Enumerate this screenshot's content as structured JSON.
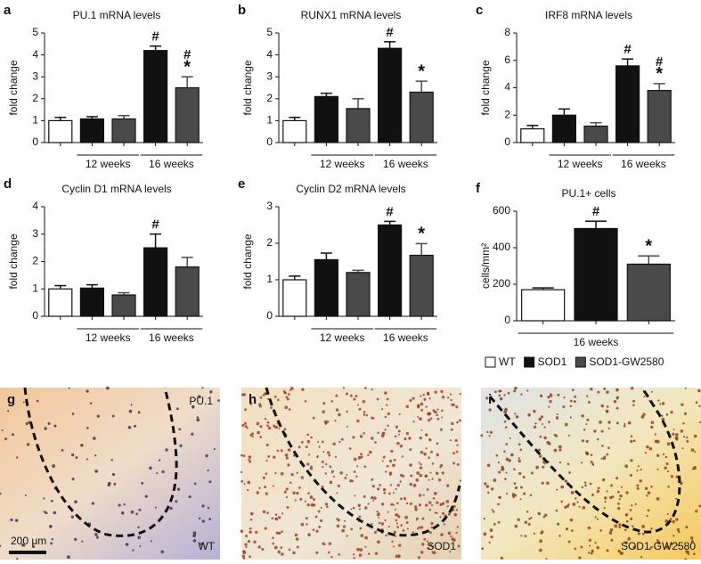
{
  "chart_data": [
    {
      "type": "bar",
      "panel": "a",
      "title": "PU.1 mRNA levels",
      "ylabel": "fold change",
      "categories": [
        null,
        null,
        null,
        null,
        null
      ],
      "values": [
        1.0,
        1.08,
        1.08,
        4.2,
        2.5
      ],
      "errors": [
        0.15,
        0.1,
        0.15,
        0.2,
        0.5
      ],
      "colors": [
        "#ffffff",
        "#111111",
        "#4a4a4a",
        "#111111",
        "#4a4a4a"
      ],
      "ylim": [
        0,
        5
      ],
      "yticks": [
        0,
        1,
        2,
        3,
        4,
        5
      ],
      "groups": [
        {
          "label": "12 weeks",
          "bars": [
            1,
            2
          ]
        },
        {
          "label": "16 weeks",
          "bars": [
            3,
            4
          ]
        }
      ],
      "annotations": [
        {
          "bar": 3,
          "text": "#"
        },
        {
          "bar": 4,
          "text": "#"
        },
        {
          "bar": 4,
          "text": "*"
        }
      ]
    },
    {
      "type": "bar",
      "panel": "b",
      "title": "RUNX1 mRNA levels",
      "ylabel": "fold change",
      "categories": [
        null,
        null,
        null,
        null,
        null
      ],
      "values": [
        1.0,
        2.1,
        1.55,
        4.3,
        2.3
      ],
      "errors": [
        0.15,
        0.15,
        0.45,
        0.3,
        0.5
      ],
      "colors": [
        "#ffffff",
        "#111111",
        "#4a4a4a",
        "#111111",
        "#4a4a4a"
      ],
      "ylim": [
        0,
        5
      ],
      "yticks": [
        0,
        1,
        2,
        3,
        4,
        5
      ],
      "groups": [
        {
          "label": "12 weeks",
          "bars": [
            1,
            2
          ]
        },
        {
          "label": "16 weeks",
          "bars": [
            3,
            4
          ]
        }
      ],
      "annotations": [
        {
          "bar": 3,
          "text": "#"
        },
        {
          "bar": 4,
          "text": "*"
        }
      ]
    },
    {
      "type": "bar",
      "panel": "c",
      "title": "IRF8 mRNA levels",
      "ylabel": "fold change",
      "categories": [
        null,
        null,
        null,
        null,
        null
      ],
      "values": [
        1.0,
        2.0,
        1.2,
        5.6,
        3.8
      ],
      "errors": [
        0.25,
        0.45,
        0.25,
        0.5,
        0.5
      ],
      "colors": [
        "#ffffff",
        "#111111",
        "#4a4a4a",
        "#111111",
        "#4a4a4a"
      ],
      "ylim": [
        0,
        8
      ],
      "yticks": [
        0,
        2,
        4,
        6,
        8
      ],
      "groups": [
        {
          "label": "12 weeks",
          "bars": [
            1,
            2
          ]
        },
        {
          "label": "16 weeks",
          "bars": [
            3,
            4
          ]
        }
      ],
      "annotations": [
        {
          "bar": 3,
          "text": "#"
        },
        {
          "bar": 4,
          "text": "#"
        },
        {
          "bar": 4,
          "text": "*"
        }
      ]
    },
    {
      "type": "bar",
      "panel": "d",
      "title": "Cyclin D1 mRNA levels",
      "ylabel": "fold change",
      "categories": [
        null,
        null,
        null,
        null,
        null
      ],
      "values": [
        1.0,
        1.03,
        0.78,
        2.5,
        1.8
      ],
      "errors": [
        0.12,
        0.12,
        0.08,
        0.5,
        0.35
      ],
      "colors": [
        "#ffffff",
        "#111111",
        "#4a4a4a",
        "#111111",
        "#4a4a4a"
      ],
      "ylim": [
        0,
        4
      ],
      "yticks": [
        0,
        1,
        2,
        3,
        4
      ],
      "groups": [
        {
          "label": "12 weeks",
          "bars": [
            1,
            2
          ]
        },
        {
          "label": "16 weeks",
          "bars": [
            3,
            4
          ]
        }
      ],
      "annotations": [
        {
          "bar": 3,
          "text": "#"
        }
      ]
    },
    {
      "type": "bar",
      "panel": "e",
      "title": "Cyclin D2 mRNA levels",
      "ylabel": "fold change",
      "categories": [
        null,
        null,
        null,
        null,
        null
      ],
      "values": [
        1.0,
        1.55,
        1.2,
        2.5,
        1.67
      ],
      "errors": [
        0.1,
        0.18,
        0.06,
        0.1,
        0.32
      ],
      "colors": [
        "#ffffff",
        "#111111",
        "#4a4a4a",
        "#111111",
        "#4a4a4a"
      ],
      "ylim": [
        0,
        3
      ],
      "yticks": [
        0,
        1,
        2,
        3
      ],
      "groups": [
        {
          "label": "12 weeks",
          "bars": [
            1,
            2
          ]
        },
        {
          "label": "16 weeks",
          "bars": [
            3,
            4
          ]
        }
      ],
      "annotations": [
        {
          "bar": 3,
          "text": "#"
        },
        {
          "bar": 4,
          "text": "*"
        }
      ]
    },
    {
      "type": "bar",
      "panel": "f",
      "title": "PU.1+ cells",
      "ylabel": "cells/mm²",
      "categories": [
        null,
        null,
        null
      ],
      "values": [
        170,
        505,
        310
      ],
      "errors": [
        10,
        40,
        45
      ],
      "colors": [
        "#ffffff",
        "#111111",
        "#4a4a4a"
      ],
      "ylim": [
        0,
        600
      ],
      "yticks": [
        0,
        200,
        400,
        600
      ],
      "groups": [
        {
          "label": "16 weeks",
          "bars": [
            0,
            2
          ]
        }
      ],
      "annotations": [
        {
          "bar": 1,
          "text": "#"
        },
        {
          "bar": 2,
          "text": "*"
        }
      ]
    }
  ],
  "legend": [
    {
      "name": "WT",
      "color": "#ffffff"
    },
    {
      "name": "SOD1",
      "color": "#111111"
    },
    {
      "name": "SOD1-GW2580",
      "color": "#4a4a4a"
    }
  ],
  "images": [
    {
      "panel": "g",
      "stain": "PU.1",
      "group": "WT",
      "scale_bar": "200 μm"
    },
    {
      "panel": "h",
      "group": "SOD1"
    },
    {
      "panel": "i",
      "group": "SOD1-GW2580"
    }
  ]
}
